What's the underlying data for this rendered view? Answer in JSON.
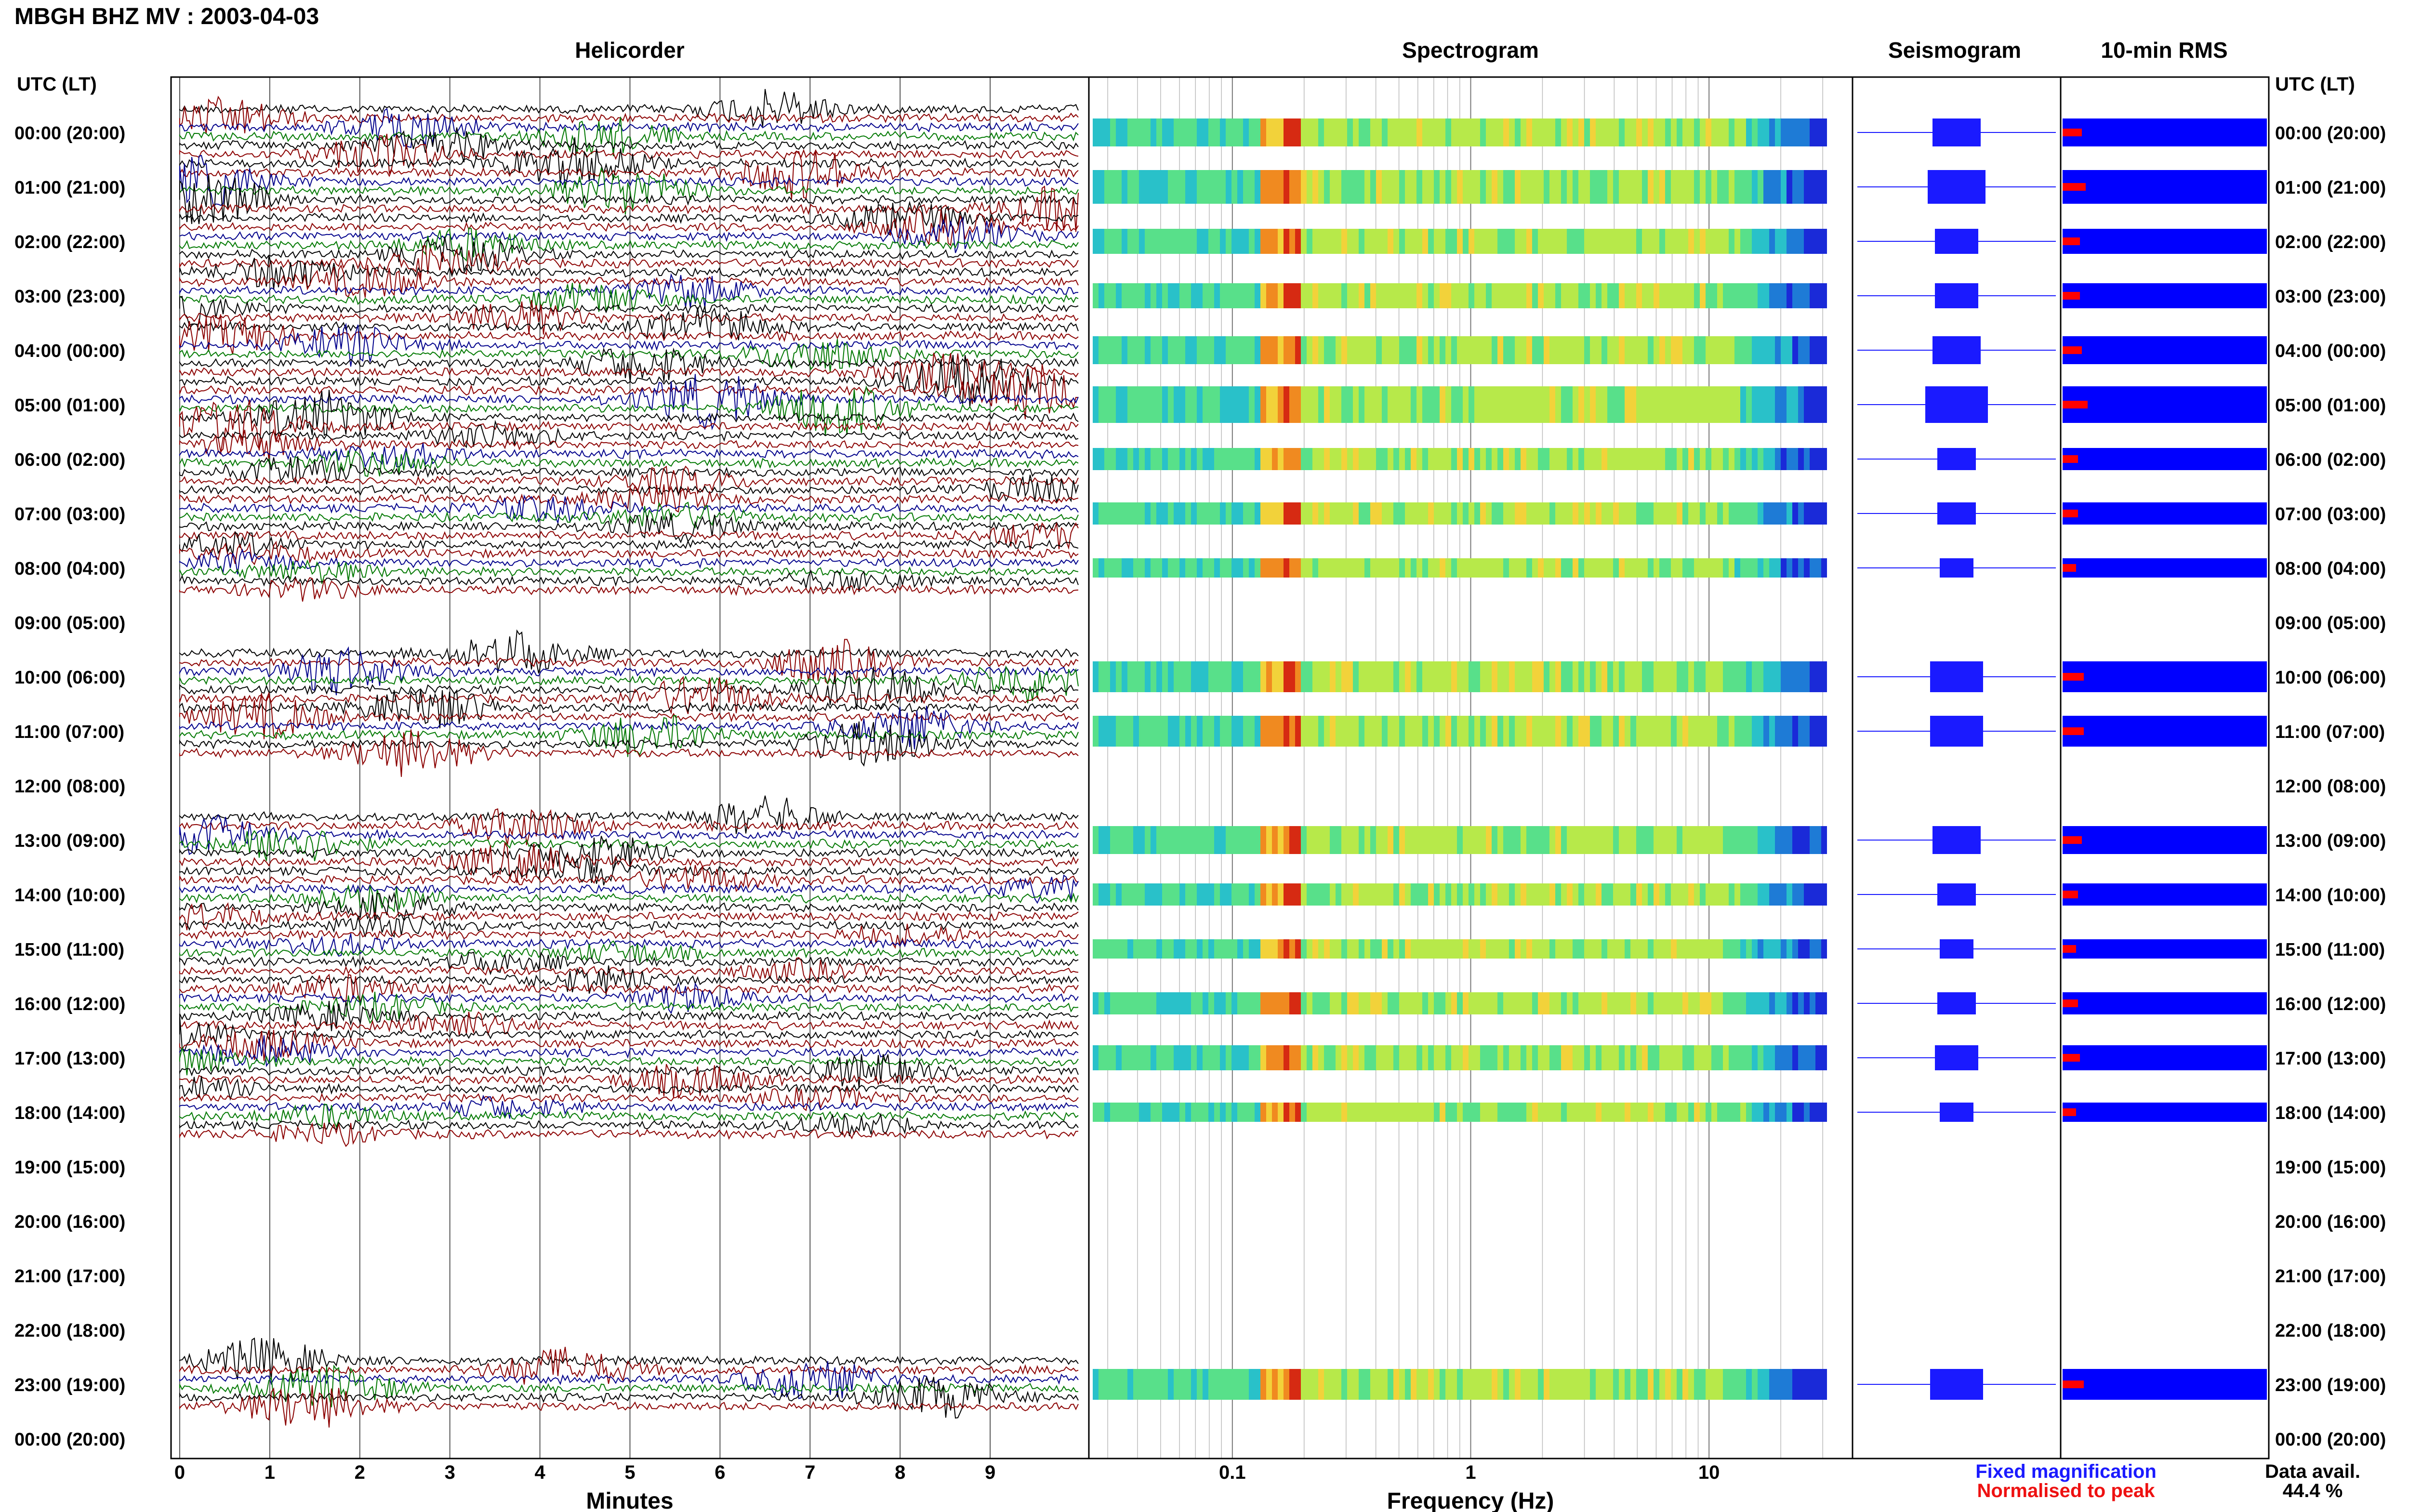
{
  "header": {
    "station_title": "MBGH BHZ MV : 2003-04-03"
  },
  "panels": {
    "helicorder": "Helicorder",
    "spectrogram": "Spectrogram",
    "seismogram": "Seismogram",
    "rms": "10-min RMS"
  },
  "axes": {
    "time_label_left": "UTC (LT)",
    "time_label_right": "UTC (LT)",
    "minutes_label": "Minutes",
    "frequency_label": "Frequency (Hz)"
  },
  "legend": {
    "fixed": "Fixed magnification",
    "normalised": "Normalised to peak",
    "data_avail_label": "Data avail.",
    "data_avail_value": "44.4 %"
  },
  "colors": {
    "trace_cycle": [
      "#000000",
      "#8b0000",
      "#00008b",
      "#007800"
    ],
    "fixed": "#1a1aff",
    "normalised": "#ee1111",
    "rms_bar": "#0000ff",
    "rms_marker": "#ff0000"
  },
  "chart_data": {
    "type": "heatmap",
    "time_ticks": [
      "00:00 (20:00)",
      "01:00 (21:00)",
      "02:00 (22:00)",
      "03:00 (23:00)",
      "04:00 (00:00)",
      "05:00 (01:00)",
      "06:00 (02:00)",
      "07:00 (03:00)",
      "08:00 (04:00)",
      "09:00 (05:00)",
      "10:00 (06:00)",
      "11:00 (07:00)",
      "12:00 (08:00)",
      "13:00 (09:00)",
      "14:00 (10:00)",
      "15:00 (11:00)",
      "16:00 (12:00)",
      "17:00 (13:00)",
      "18:00 (14:00)",
      "19:00 (15:00)",
      "20:00 (16:00)",
      "21:00 (17:00)",
      "22:00 (18:00)",
      "23:00 (19:00)",
      "00:00 (20:00)"
    ],
    "minutes_ticks": [
      "0",
      "1",
      "2",
      "3",
      "4",
      "5",
      "6",
      "7",
      "8",
      "9"
    ],
    "minutes_range": [
      0,
      10
    ],
    "frequency_ticks": [
      "0.1",
      "1",
      "10"
    ],
    "frequency_range_hz": [
      0.025,
      40
    ],
    "hourly_data": [
      {
        "hour": 0,
        "traces": 1,
        "amp": 0.6
      },
      {
        "hour": 1,
        "traces": 3,
        "amp": 0.8
      },
      {
        "hour": 2,
        "traces": 1,
        "amp": 0.5
      },
      {
        "hour": 3,
        "traces": 1,
        "amp": 0.5
      },
      {
        "hour": 4,
        "traces": 2,
        "amp": 0.6
      },
      {
        "hour": 5,
        "traces": 3,
        "amp": 0.9
      },
      {
        "hour": 6,
        "traces": 1,
        "amp": 0.4
      },
      {
        "hour": 7,
        "traces": 1,
        "amp": 0.4
      },
      {
        "hour": 8,
        "traces": 1,
        "amp": 0.3
      },
      {
        "hour": 9,
        "traces": 0,
        "amp": 0
      },
      {
        "hour": 10,
        "traces": 3,
        "amp": 0.7
      },
      {
        "hour": 11,
        "traces": 3,
        "amp": 0.7
      },
      {
        "hour": 12,
        "traces": 0,
        "amp": 0
      },
      {
        "hour": 13,
        "traces": 3,
        "amp": 0.6
      },
      {
        "hour": 14,
        "traces": 1,
        "amp": 0.4
      },
      {
        "hour": 15,
        "traces": 1,
        "amp": 0.3
      },
      {
        "hour": 16,
        "traces": 2,
        "amp": 0.4
      },
      {
        "hour": 17,
        "traces": 1,
        "amp": 0.5
      },
      {
        "hour": 18,
        "traces": 1,
        "amp": 0.3
      },
      {
        "hour": 19,
        "traces": 0,
        "amp": 0
      },
      {
        "hour": 20,
        "traces": 0,
        "amp": 0
      },
      {
        "hour": 21,
        "traces": 0,
        "amp": 0
      },
      {
        "hour": 22,
        "traces": 0,
        "amp": 0
      },
      {
        "hour": 23,
        "traces": 3,
        "amp": 0.7
      },
      {
        "hour": 24,
        "traces": 0,
        "amp": 0
      }
    ]
  }
}
